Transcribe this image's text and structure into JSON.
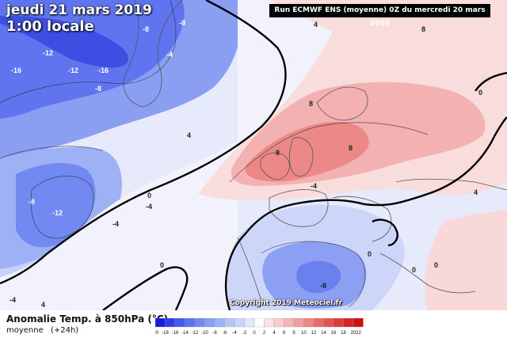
{
  "map": {
    "date_line": "jeudi 21 mars 2019",
    "time_line": "1:00 locale",
    "run_info": "Run ECMWF ENS (moyenne) 0Z du mercredi 20 mars 2019",
    "copyright": "Copyright 2019 Meteociel.fr",
    "variable": "Anomalie Temp. à 850hPa (°C)",
    "stat": "moyenne",
    "lead": "(+24h)",
    "contour_labels": [
      "-16",
      "-12",
      "-16",
      "-12",
      "-12",
      "-8",
      "-8",
      "-8",
      "-8",
      "-4",
      "-4",
      "-4",
      "-4",
      "-4",
      "0",
      "0",
      "0",
      "0",
      "4",
      "4",
      "4",
      "8",
      "8",
      "8",
      "8",
      "4",
      "0",
      "0",
      "-8"
    ],
    "legend": {
      "ticks": [
        "-20",
        "-18",
        "-16",
        "-14",
        "-12",
        "-10",
        "-8",
        "-6",
        "-4",
        "-2",
        "0",
        "2",
        "4",
        "6",
        "8",
        "10",
        "12",
        "14",
        "16",
        "18",
        "20",
        "22"
      ],
      "colors": [
        "#1b1bdc",
        "#2f3ee6",
        "#4659ee",
        "#5d72f0",
        "#7389f2",
        "#8a9ef4",
        "#a0b2f6",
        "#b6c4f8",
        "#cbd5fa",
        "#e1e7fc",
        "#ffffff",
        "#fbe3e3",
        "#f8cccc",
        "#f5b4b4",
        "#f29c9c",
        "#ee8484",
        "#ea6b6b",
        "#e55252",
        "#df3a3a",
        "#d82424",
        "#cc1010"
      ]
    },
    "colors": {
      "cold_deep": "#3d4fe2",
      "cold": "#6a7ff0",
      "cool": "#a9b8f4",
      "cool_light": "#d3dbf8",
      "neutral": "#f8f6f8",
      "warm_light": "#fbe0e0",
      "warm": "#f6b8b8",
      "warm_strong": "#ef8f8f"
    }
  }
}
